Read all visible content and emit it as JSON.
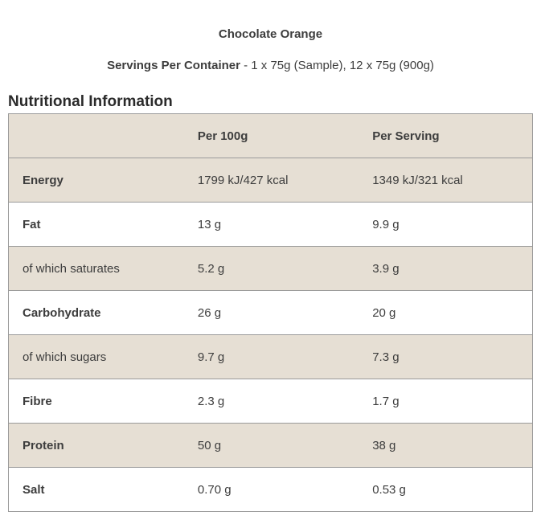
{
  "header": {
    "product_title": "Chocolate Orange",
    "servings_label": "Servings Per Container",
    "servings_value": " - 1 x 75g (Sample), 12 x 75g (900g)"
  },
  "section_title": "Nutritional Information",
  "table": {
    "columns": [
      "",
      "Per 100g",
      "Per Serving"
    ],
    "rows": [
      {
        "label": "Energy",
        "per_100g": "1799 kJ/427 kcal",
        "per_serving": "1349 kJ/321 kcal",
        "sub": false
      },
      {
        "label": "Fat",
        "per_100g": "13 g",
        "per_serving": "9.9 g",
        "sub": false
      },
      {
        "label": "of which saturates",
        "per_100g": "5.2 g",
        "per_serving": "3.9 g",
        "sub": true
      },
      {
        "label": "Carbohydrate",
        "per_100g": "26 g",
        "per_serving": "20 g",
        "sub": false
      },
      {
        "label": "of which sugars",
        "per_100g": "9.7 g",
        "per_serving": "7.3 g",
        "sub": true
      },
      {
        "label": "Fibre",
        "per_100g": "2.3 g",
        "per_serving": "1.7 g",
        "sub": false
      },
      {
        "label": "Protein",
        "per_100g": "50 g",
        "per_serving": "38 g",
        "sub": false
      },
      {
        "label": "Salt",
        "per_100g": "0.70 g",
        "per_serving": "0.53 g",
        "sub": false
      }
    ]
  },
  "colors": {
    "row_shade": "#e6dfd4",
    "border": "#9a9a9a",
    "text": "#3d3d3d",
    "heading": "#2b2b2b",
    "background": "#ffffff"
  }
}
